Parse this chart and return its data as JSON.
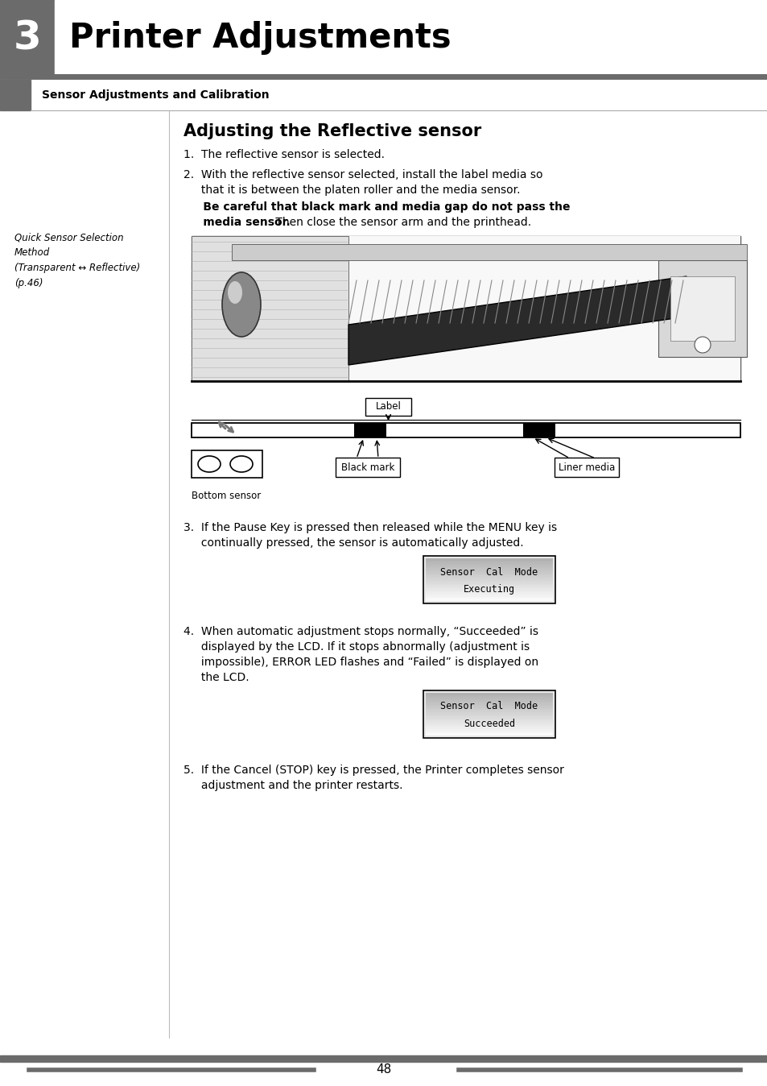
{
  "page_bg": "#ffffff",
  "header_bar_color": "#6b6b6b",
  "header_number": "3",
  "header_title": "Printer Adjustments",
  "subheader": "Sensor Adjustments and Calibration",
  "left_sidebar_text": "Quick Sensor Selection\nMethod\n(Transparent ↔ Reflective)\n(p.46)",
  "section_title": "Adjusting the Reflective sensor",
  "step1": "1.  The reflective sensor is selected.",
  "step2_line1": "2.  With the reflective sensor selected, install the label media so",
  "step2_line2": "     that it is between the platen roller and the media sensor.",
  "step2_bold": "     Be careful that black mark and media gap do not pass the\n     media sensor.",
  "step2_end": " Then close the sensor arm and the printhead.",
  "step3_line1": "3.  If the Pause Key is pressed then released while the MENU key is",
  "step3_line2": "     continually pressed, the sensor is automatically adjusted.",
  "step4_line1": "4.  When automatic adjustment stops normally, “Succeeded” is",
  "step4_line2": "     displayed by the LCD. If it stops abnormally (adjustment is",
  "step4_line3": "     impossible), ERROR LED flashes and “Failed” is displayed on",
  "step4_line4": "     the LCD.",
  "step5_line1": "5.  If the Cancel (STOP) key is pressed, the Printer completes sensor",
  "step5_line2": "     adjustment and the printer restarts.",
  "lcd_box1_line1": "Sensor  Cal  Mode",
  "lcd_box1_line2": "Executing",
  "lcd_box2_line1": "Sensor  Cal  Mode",
  "lcd_box2_line2": "Succeeded",
  "page_number": "48",
  "divider_color": "#6b6b6b",
  "label_tag": "Label",
  "black_mark_tag": "Black mark",
  "liner_media_tag": "Liner media",
  "bottom_sensor_tag": "Bottom sensor"
}
